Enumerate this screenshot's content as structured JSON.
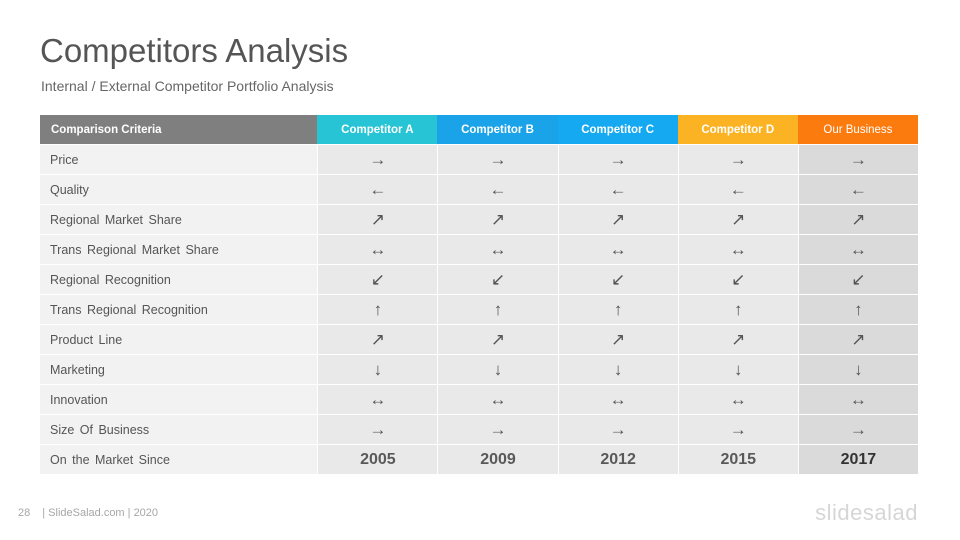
{
  "title": "Competitors Analysis",
  "subtitle": "Internal / External Competitor Portfolio Analysis",
  "table": {
    "header": {
      "criteria": "Comparison Criteria",
      "columns": [
        {
          "label": "Competitor A",
          "color": "#26c4d4"
        },
        {
          "label": "Competitor B",
          "color": "#1aa3e8"
        },
        {
          "label": "Competitor C",
          "color": "#14a9f0"
        },
        {
          "label": "Competitor D",
          "color": "#fbb324"
        },
        {
          "label": "Our Business",
          "color": "#fc7b0f"
        }
      ]
    },
    "rows": [
      {
        "criteria": "Price",
        "values": [
          "→",
          "→",
          "→",
          "→",
          "→"
        ]
      },
      {
        "criteria": "Quality",
        "values": [
          "←",
          "←",
          "←",
          "←",
          "←"
        ]
      },
      {
        "criteria": "Regional Market Share",
        "values": [
          "↗",
          "↗",
          "↗",
          "↗",
          "↗"
        ]
      },
      {
        "criteria": "Trans Regional Market Share",
        "values": [
          "↔",
          "↔",
          "↔",
          "↔",
          "↔"
        ]
      },
      {
        "criteria": "Regional Recognition",
        "values": [
          "↙",
          "↙",
          "↙",
          "↙",
          "↙"
        ]
      },
      {
        "criteria": "Trans Regional Recognition",
        "values": [
          "↑",
          "↑",
          "↑",
          "↑",
          "↑"
        ]
      },
      {
        "criteria": "Product Line",
        "values": [
          "↗",
          "↗",
          "↗",
          "↗",
          "↗"
        ]
      },
      {
        "criteria": "Marketing",
        "values": [
          "↓",
          "↓",
          "↓",
          "↓",
          "↓"
        ]
      },
      {
        "criteria": "Innovation",
        "values": [
          "↔",
          "↔",
          "↔",
          "↔",
          "↔"
        ]
      },
      {
        "criteria": "Size Of Business",
        "values": [
          "→",
          "→",
          "→",
          "→",
          "→"
        ]
      },
      {
        "criteria": "On the Market Since",
        "values": [
          "2005",
          "2009",
          "2012",
          "2015",
          "2017"
        ]
      }
    ]
  },
  "footer": {
    "page": "28",
    "text": "| SlideSalad.com | 2020"
  },
  "logo": "slidesalad"
}
